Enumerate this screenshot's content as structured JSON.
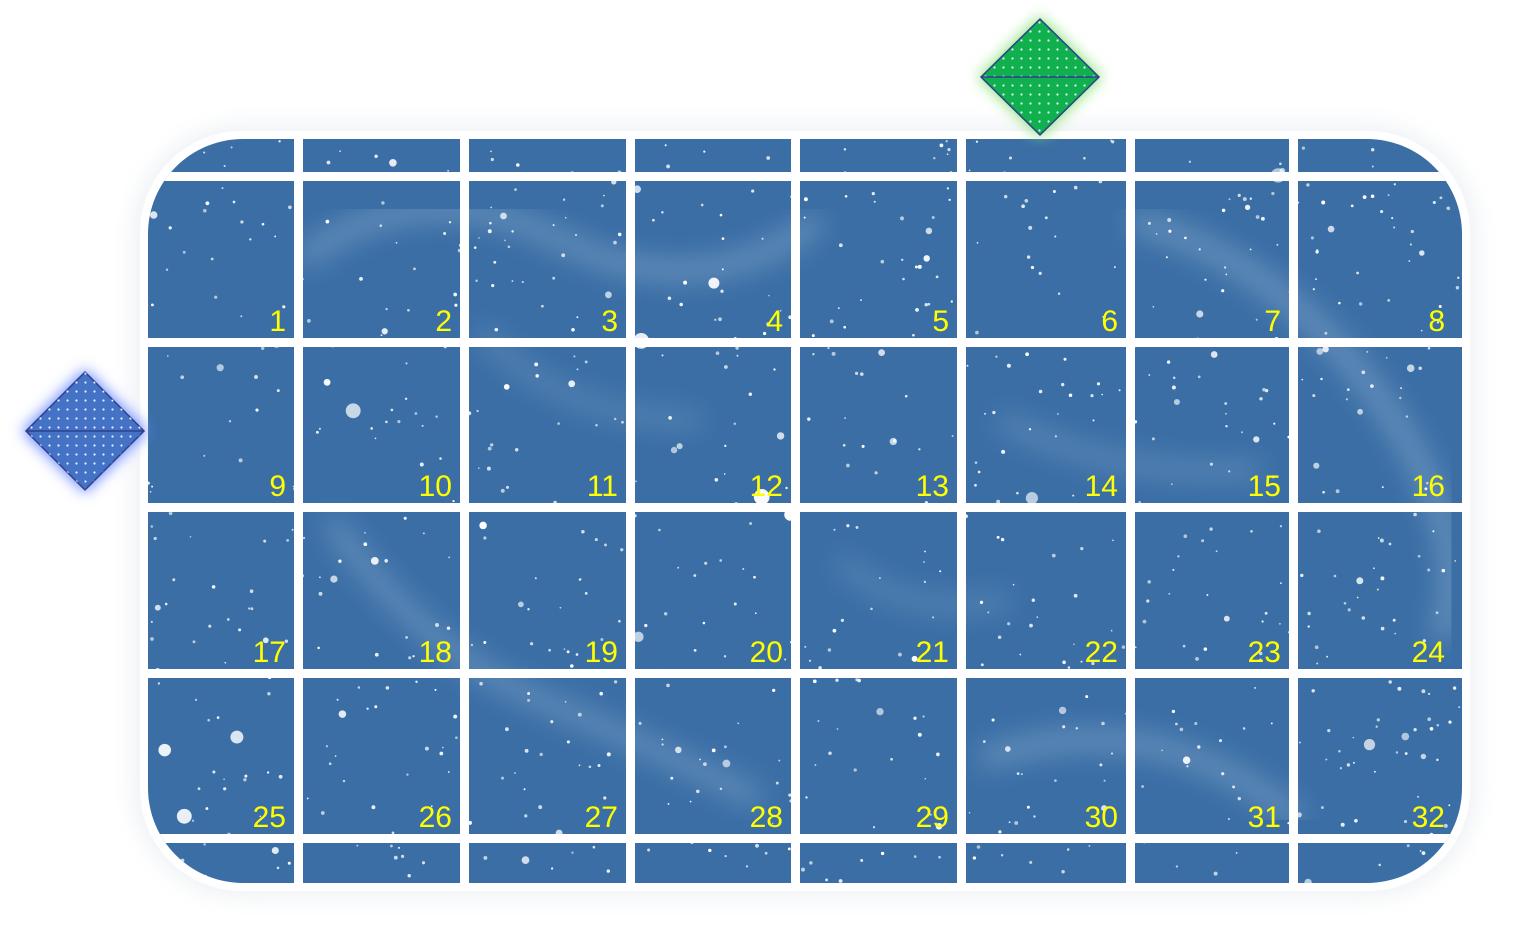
{
  "tiles": [
    "1",
    "2",
    "3",
    "4",
    "5",
    "6",
    "7",
    "8",
    "9",
    "10",
    "11",
    "12",
    "13",
    "14",
    "15",
    "16",
    "17",
    "18",
    "19",
    "20",
    "21",
    "22",
    "23",
    "24",
    "25",
    "26",
    "27",
    "28",
    "29",
    "30",
    "31",
    "32"
  ],
  "markers": {
    "top": {
      "name": "green-diamond-marker",
      "color": "#11b04f",
      "glow": "#8ee37a"
    },
    "left": {
      "name": "blue-diamond-marker",
      "color": "#4472c4",
      "glow": "#6f8cff"
    }
  },
  "colors": {
    "field": "#3a6ea5",
    "grid_line": "#ffffff",
    "label": "#ffff00",
    "star": "#ffffff"
  }
}
